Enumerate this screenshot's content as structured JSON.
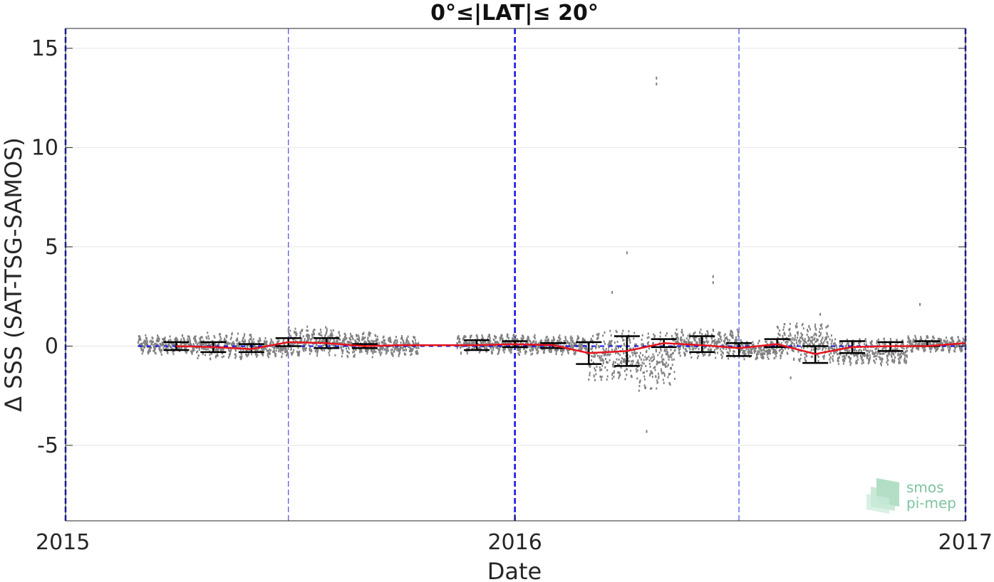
{
  "chart_data": {
    "type": "scatter",
    "title": "0°≤|LAT|≤ 20°",
    "xlabel": "Date",
    "ylabel": "Δ SSS (SAT-TSG-SAMOS)",
    "xlim": [
      "2015-01-01",
      "2017-01-01"
    ],
    "ylim": [
      -8.8,
      16
    ],
    "x_ticks": [
      "2015",
      "2016",
      "2017"
    ],
    "y_ticks": [
      -5,
      0,
      5,
      10,
      15
    ],
    "grid": "horizontal",
    "year_lines": [
      "2015-01-01",
      "2016-01-01",
      "2017-01-01"
    ],
    "half_year_lines": [
      "2015-07-01",
      "2016-07-01"
    ],
    "colors": {
      "points": "#808080",
      "mean_line": "#e8141c",
      "errorbars": "#000000",
      "reference": "#1010e0",
      "logo": "#7fc4a0"
    },
    "series": [
      {
        "type": "line",
        "x": [
          "2015-04-01",
          "2015-05-01",
          "2015-06-01",
          "2015-07-01",
          "2015-08-01",
          "2015-09-01",
          "2015-10-01",
          "2015-12-01",
          "2016-01-01",
          "2016-02-01",
          "2016-03-01",
          "2016-04-01",
          "2016-05-01",
          "2016-06-01",
          "2016-07-01",
          "2016-08-01",
          "2016-09-01",
          "2016-10-01",
          "2016-11-01",
          "2016-12-01",
          "2017-01-01"
        ],
        "y": [
          0.0,
          -0.05,
          -0.15,
          0.2,
          0.15,
          0.0,
          0.05,
          0.05,
          0.1,
          0.05,
          -0.35,
          -0.25,
          0.15,
          0.05,
          -0.1,
          0.1,
          -0.4,
          -0.05,
          0.0,
          0.0,
          0.15
        ]
      },
      {
        "type": "errorbar",
        "x": [
          "2015-04-01",
          "2015-05-01",
          "2015-06-01",
          "2015-07-01",
          "2015-08-01",
          "2015-09-01",
          "2015-12-01",
          "2016-01-01",
          "2016-02-01",
          "2016-03-01",
          "2016-04-01",
          "2016-05-01",
          "2016-06-01",
          "2016-07-01",
          "2016-08-01",
          "2016-09-01",
          "2016-10-01",
          "2016-11-01",
          "2016-12-01"
        ],
        "lower": [
          -0.2,
          -0.3,
          -0.3,
          0.0,
          -0.1,
          -0.1,
          -0.2,
          -0.05,
          -0.1,
          -0.9,
          -1.0,
          -0.05,
          -0.3,
          -0.5,
          -0.05,
          -0.85,
          -0.35,
          -0.25,
          0.0
        ],
        "upper": [
          0.2,
          0.2,
          0.1,
          0.4,
          0.4,
          0.1,
          0.3,
          0.25,
          0.15,
          0.2,
          0.5,
          0.35,
          0.5,
          0.15,
          0.35,
          0.0,
          0.25,
          0.2,
          0.25
        ]
      },
      {
        "type": "points",
        "segments": [
          {
            "from": "2015-03-01",
            "to": "2015-04-15",
            "center": 0.05,
            "spread": 0.6
          },
          {
            "from": "2015-04-15",
            "to": "2015-06-01",
            "center": 0.0,
            "spread": 0.8
          },
          {
            "from": "2015-06-01",
            "to": "2015-07-01",
            "center": -0.1,
            "spread": 0.6
          },
          {
            "from": "2015-07-01",
            "to": "2015-08-10",
            "center": 0.25,
            "spread": 0.9
          },
          {
            "from": "2015-08-10",
            "to": "2015-09-10",
            "center": 0.1,
            "spread": 0.8
          },
          {
            "from": "2015-09-10",
            "to": "2015-10-15",
            "center": 0.0,
            "spread": 0.6
          },
          {
            "from": "2015-11-15",
            "to": "2016-01-01",
            "center": 0.1,
            "spread": 0.6
          },
          {
            "from": "2016-01-01",
            "to": "2016-03-01",
            "center": 0.05,
            "spread": 0.6
          },
          {
            "from": "2016-03-01",
            "to": "2016-04-10",
            "center": -0.5,
            "spread": 1.6
          },
          {
            "from": "2016-04-10",
            "to": "2016-05-10",
            "center": -0.8,
            "spread": 1.8
          },
          {
            "from": "2016-05-10",
            "to": "2016-07-01",
            "center": 0.1,
            "spread": 0.9
          },
          {
            "from": "2016-07-01",
            "to": "2016-08-01",
            "center": -0.2,
            "spread": 0.6
          },
          {
            "from": "2016-08-01",
            "to": "2016-09-15",
            "center": 0.2,
            "spread": 1.2
          },
          {
            "from": "2016-09-15",
            "to": "2016-11-15",
            "center": -0.3,
            "spread": 0.8
          },
          {
            "from": "2016-11-15",
            "to": "2017-01-01",
            "center": 0.1,
            "spread": 0.5
          }
        ],
        "outliers": [
          {
            "x": "2016-04-25",
            "y": 13.5
          },
          {
            "x": "2016-04-25",
            "y": 13.2
          },
          {
            "x": "2016-04-01",
            "y": 4.7
          },
          {
            "x": "2016-06-10",
            "y": 3.5
          },
          {
            "x": "2016-06-10",
            "y": 3.2
          },
          {
            "x": "2016-04-17",
            "y": -4.3
          },
          {
            "x": "2016-03-20",
            "y": 2.7
          },
          {
            "x": "2016-09-05",
            "y": 1.6
          },
          {
            "x": "2016-11-25",
            "y": 2.1
          },
          {
            "x": "2016-08-12",
            "y": -1.6
          }
        ]
      }
    ]
  },
  "logo": {
    "line1": "smos",
    "line2": "pi-mep"
  }
}
